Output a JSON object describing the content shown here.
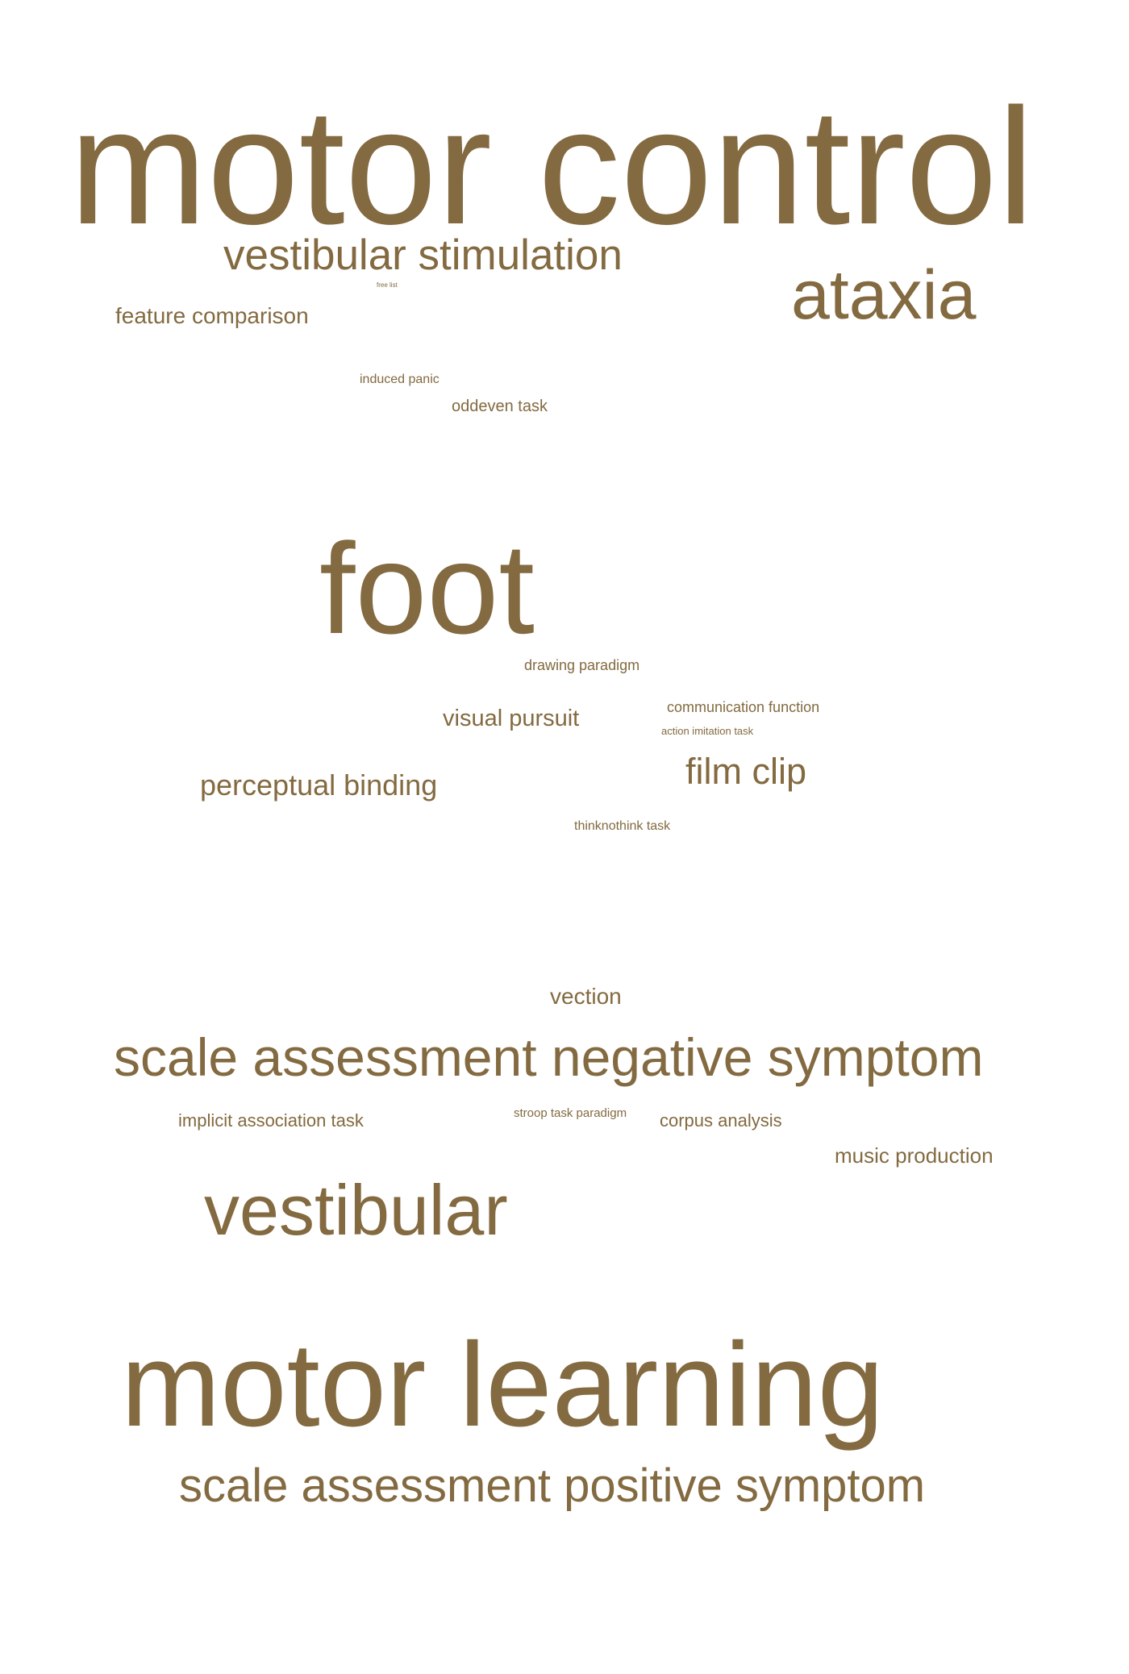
{
  "word_cloud": {
    "color": "#836a40",
    "words": [
      {
        "text": "motor control"
      },
      {
        "text": "vestibular stimulation"
      },
      {
        "text": "ataxia"
      },
      {
        "text": "free list"
      },
      {
        "text": "feature comparison"
      },
      {
        "text": "induced panic"
      },
      {
        "text": "oddeven task"
      },
      {
        "text": "foot"
      },
      {
        "text": "drawing paradigm"
      },
      {
        "text": "communication function"
      },
      {
        "text": "visual pursuit"
      },
      {
        "text": "action imitation task"
      },
      {
        "text": "film clip"
      },
      {
        "text": "perceptual binding"
      },
      {
        "text": "thinknothink task"
      },
      {
        "text": "vection"
      },
      {
        "text": "scale assessment negative symptom"
      },
      {
        "text": "implicit association task"
      },
      {
        "text": "stroop task paradigm"
      },
      {
        "text": "corpus analysis"
      },
      {
        "text": "music production"
      },
      {
        "text": "vestibular"
      },
      {
        "text": "motor learning"
      },
      {
        "text": "scale assessment positive symptom"
      }
    ]
  }
}
